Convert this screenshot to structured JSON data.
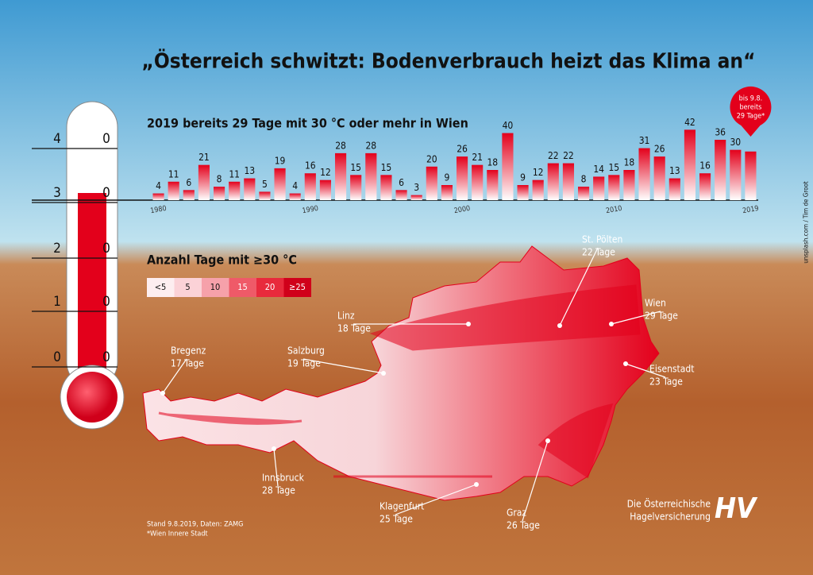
{
  "title": "„Österreich schwitzt: Bodenverbrauch heizt das Klima an“",
  "chart_data": {
    "type": "bar",
    "title": "2019 bereits 29 Tage mit 30 °C oder mehr in Wien",
    "categories": [
      "1980",
      null,
      null,
      null,
      null,
      null,
      null,
      null,
      null,
      null,
      "1990",
      null,
      null,
      null,
      null,
      null,
      null,
      null,
      null,
      null,
      "2000",
      null,
      null,
      null,
      null,
      null,
      null,
      null,
      null,
      null,
      "2010",
      null,
      null,
      null,
      null,
      null,
      null,
      null,
      null,
      "2019"
    ],
    "values": [
      4,
      11,
      6,
      21,
      8,
      11,
      13,
      5,
      19,
      4,
      16,
      12,
      28,
      15,
      28,
      15,
      6,
      3,
      20,
      9,
      26,
      21,
      18,
      40,
      9,
      12,
      22,
      22,
      8,
      14,
      15,
      18,
      31,
      26,
      13,
      42,
      16,
      36,
      30,
      29
    ],
    "value_labels": [
      "4",
      "11",
      "6",
      "21",
      "8",
      "11",
      "13",
      "5",
      "19",
      "4",
      "16",
      "12",
      "28",
      "15",
      "28",
      "15",
      "6",
      "3",
      "20",
      "9",
      "26",
      "21",
      "18",
      "40",
      "9",
      "12",
      "22",
      "22",
      "8",
      "14",
      "15",
      "18",
      "31",
      "26",
      "13",
      "42",
      "16",
      "36",
      "30",
      null
    ],
    "color": "#e3001b",
    "ylim": [
      0,
      45
    ],
    "annotation": [
      "bis 9.8.",
      "bereits",
      "29 Tage*"
    ]
  },
  "thermometer": {
    "left_scale": [
      "4",
      "3",
      "2",
      "1",
      "0"
    ],
    "right_scale": [
      "0",
      "0",
      "0",
      "0",
      "0"
    ]
  },
  "legend": {
    "title": "Anzahl Tage mit ≥30 °C",
    "classes": [
      "<5",
      "5",
      "10",
      "15",
      "20",
      "≥25"
    ]
  },
  "cities": [
    {
      "name": "Bregenz",
      "days": "17 Tage"
    },
    {
      "name": "Salzburg",
      "days": "19 Tage"
    },
    {
      "name": "Linz",
      "days": "18 Tage"
    },
    {
      "name": "St. Pölten",
      "days": "22 Tage"
    },
    {
      "name": "Wien",
      "days": "29 Tage"
    },
    {
      "name": "Eisenstadt",
      "days": "23 Tage"
    },
    {
      "name": "Innsbruck",
      "days": "28 Tage"
    },
    {
      "name": "Klagenfurt",
      "days": "25 Tage"
    },
    {
      "name": "Graz",
      "days": "26 Tage"
    }
  ],
  "footnote": [
    "Stand 9.8.2019, Daten: ZAMG",
    "*Wien Innere Stadt"
  ],
  "credit": "unsplash.com / Tim de Groot",
  "logo": {
    "lines": [
      "Die Österreichische",
      "Hagelversicherung"
    ],
    "mark": "HV"
  }
}
